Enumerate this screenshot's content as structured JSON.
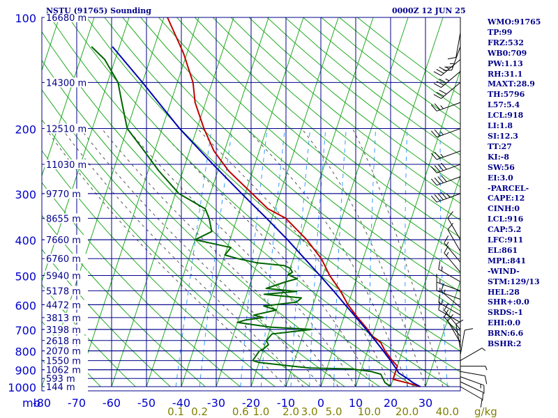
{
  "header": {
    "title": "NSTU (91765) Sounding",
    "datetime": "0000Z 12 JUN 25"
  },
  "colors": {
    "frame": "#00008b",
    "axis_text": "#0000cd",
    "mixing_text": "#808000",
    "dry_adiabat": "#22aa22",
    "temperature": "#c00000",
    "dewpoint": "#006400",
    "parcel": "#0000b4",
    "moist_adiabat": "#555555",
    "mixing_ratio": "#3399ff",
    "wind": "#000000",
    "stats": "#00008b"
  },
  "stats": [
    "WMO:91765",
    "TP:99",
    "FRZ:532",
    "WB0:709",
    "PW:1.13",
    "RH:31.1",
    "MAXT:28.9",
    "TH:5796",
    "L57:5.4",
    "LCL:918",
    "LI:1.8",
    "SI:12.3",
    "TT:27",
    "KI:-8",
    "SW:56",
    "EI:3.0",
    "-PARCEL-",
    "CAPE:12",
    "CINH:0",
    "LCL:916",
    "CAP:5.2",
    "LFC:911",
    "EL:861",
    "MPL:841",
    "-WIND-",
    "STM:129/13",
    "HEL:28",
    "SHR+:0.0",
    "SRDS:-1",
    "EHI:0.0",
    "BRN:6.6",
    "BSHR:2"
  ],
  "chart_data": {
    "type": "line",
    "title": "NSTU (91765) Sounding",
    "xlabel": "",
    "ylabel": "mb",
    "x_unit_label": "g/kg",
    "xlim": [
      -80,
      40
    ],
    "ylim": [
      1000,
      100
    ],
    "y_scale": "log",
    "temperature_ticks": [
      "-80",
      "-70",
      "-60",
      "-50",
      "-40",
      "-30",
      "-20",
      "-10",
      "0",
      "10",
      "20",
      "30"
    ],
    "pressure_ticks": [
      {
        "p": 100,
        "label": "100"
      },
      {
        "p": 200,
        "label": "200"
      },
      {
        "p": 300,
        "label": "300"
      },
      {
        "p": 400,
        "label": "400"
      },
      {
        "p": 500,
        "label": "500"
      },
      {
        "p": 600,
        "label": "600"
      },
      {
        "p": 700,
        "label": "700"
      },
      {
        "p": 800,
        "label": "800"
      },
      {
        "p": 900,
        "label": "900"
      },
      {
        "p": 1000,
        "label": "1000"
      }
    ],
    "height_labels": [
      {
        "p": 100,
        "label": "16680 m"
      },
      {
        "p": 150,
        "label": "14300 m"
      },
      {
        "p": 200,
        "label": "12510 m"
      },
      {
        "p": 250,
        "label": "11030 m"
      },
      {
        "p": 300,
        "label": "9770 m"
      },
      {
        "p": 350,
        "label": "8655 m"
      },
      {
        "p": 400,
        "label": "7660 m"
      },
      {
        "p": 450,
        "label": "6760 m"
      },
      {
        "p": 500,
        "label": "5940 m"
      },
      {
        "p": 550,
        "label": "5178 m"
      },
      {
        "p": 600,
        "label": "4472 m"
      },
      {
        "p": 650,
        "label": "3813 m"
      },
      {
        "p": 700,
        "label": "3198 m"
      },
      {
        "p": 750,
        "label": "2618 m"
      },
      {
        "p": 800,
        "label": "2070 m"
      },
      {
        "p": 850,
        "label": "1550 m"
      },
      {
        "p": 900,
        "label": "1062 m"
      },
      {
        "p": 950,
        "label": "593 m"
      },
      {
        "p": 1000,
        "label": "144 m"
      }
    ],
    "mixing_ratio_labels": [
      "0.1",
      "0.2",
      "0.6",
      "1.0",
      "2.0",
      "3.0",
      "5.0",
      "10.0",
      "20.0",
      "40.0"
    ],
    "mixing_ratio_values": [
      0.1,
      0.2,
      0.6,
      1.0,
      2.0,
      3.0,
      5.0,
      10.0,
      20.0,
      40.0
    ],
    "grid": true,
    "series": [
      {
        "key": "temperature",
        "points": [
          [
            1000,
            28.5
          ],
          [
            980,
            25
          ],
          [
            955,
            20
          ],
          [
            910,
            20
          ],
          [
            880,
            20
          ],
          [
            850,
            18
          ],
          [
            800,
            15
          ],
          [
            760,
            13
          ],
          [
            730,
            10
          ],
          [
            700,
            8
          ],
          [
            650,
            4
          ],
          [
            600,
            0
          ],
          [
            550,
            -3.5
          ],
          [
            500,
            -8
          ],
          [
            450,
            -12
          ],
          [
            400,
            -18
          ],
          [
            350,
            -26
          ],
          [
            330,
            -32
          ],
          [
            300,
            -38
          ],
          [
            260,
            -47
          ],
          [
            230,
            -53
          ],
          [
            200,
            -58
          ],
          [
            170,
            -63
          ],
          [
            150,
            -65.5
          ],
          [
            125,
            -71
          ],
          [
            100,
            -79
          ]
        ]
      },
      {
        "key": "dewpoint",
        "points": [
          [
            1000,
            20
          ],
          [
            975,
            18
          ],
          [
            950,
            17
          ],
          [
            925,
            16
          ],
          [
            910,
            13
          ],
          [
            895,
            7
          ],
          [
            890,
            -5
          ],
          [
            860,
            -20
          ],
          [
            850,
            -22
          ],
          [
            800,
            -21
          ],
          [
            790,
            -20
          ],
          [
            770,
            -19
          ],
          [
            750,
            -20
          ],
          [
            720,
            -19
          ],
          [
            700,
            -8
          ],
          [
            690,
            -20
          ],
          [
            680,
            -25
          ],
          [
            670,
            -30
          ],
          [
            660,
            -28
          ],
          [
            650,
            -23
          ],
          [
            640,
            -26
          ],
          [
            620,
            -20
          ],
          [
            605,
            -24
          ],
          [
            590,
            -15
          ],
          [
            575,
            -14
          ],
          [
            562,
            -25
          ],
          [
            552,
            -16
          ],
          [
            542,
            -25
          ],
          [
            520,
            -20
          ],
          [
            510,
            -17
          ],
          [
            498,
            -20
          ],
          [
            490,
            -19
          ],
          [
            478,
            -20
          ],
          [
            470,
            -22
          ],
          [
            462,
            -30
          ],
          [
            450,
            -36
          ],
          [
            440,
            -40
          ],
          [
            420,
            -39
          ],
          [
            400,
            -50
          ],
          [
            380,
            -46
          ],
          [
            350,
            -48
          ],
          [
            330,
            -50
          ],
          [
            300,
            -59
          ],
          [
            260,
            -67
          ],
          [
            230,
            -73
          ],
          [
            200,
            -80
          ],
          [
            170,
            -84
          ],
          [
            150,
            -87
          ],
          [
            130,
            -93
          ],
          [
            120,
            -98
          ]
        ]
      },
      {
        "key": "parcel",
        "points": [
          [
            1000,
            28.5
          ],
          [
            975,
            26
          ],
          [
            950,
            24
          ],
          [
            918,
            21
          ],
          [
            900,
            20.2
          ],
          [
            850,
            17.5
          ],
          [
            800,
            14.5
          ],
          [
            750,
            11.2
          ],
          [
            700,
            7.6
          ],
          [
            650,
            3.6
          ],
          [
            600,
            -0.8
          ],
          [
            550,
            -5.5
          ],
          [
            500,
            -10.8
          ],
          [
            450,
            -16.8
          ],
          [
            400,
            -23.5
          ],
          [
            350,
            -31.5
          ],
          [
            300,
            -41
          ],
          [
            250,
            -52
          ],
          [
            200,
            -65
          ],
          [
            150,
            -80
          ],
          [
            120,
            -92
          ]
        ]
      }
    ],
    "wind_barbs": [
      {
        "p": 1000,
        "dir": 120,
        "spd": 10
      },
      {
        "p": 970,
        "dir": 115,
        "spd": 12
      },
      {
        "p": 940,
        "dir": 110,
        "spd": 15
      },
      {
        "p": 910,
        "dir": 100,
        "spd": 10
      },
      {
        "p": 880,
        "dir": 90,
        "spd": 5
      },
      {
        "p": 850,
        "dir": 60,
        "spd": 5
      },
      {
        "p": 820,
        "dir": 10,
        "spd": 10
      },
      {
        "p": 790,
        "dir": 350,
        "spd": 10
      },
      {
        "p": 760,
        "dir": 330,
        "spd": 10
      },
      {
        "p": 730,
        "dir": 320,
        "spd": 10
      },
      {
        "p": 700,
        "dir": 320,
        "spd": 10
      },
      {
        "p": 670,
        "dir": 300,
        "spd": 10
      },
      {
        "p": 640,
        "dir": 300,
        "spd": 15
      },
      {
        "p": 610,
        "dir": 310,
        "spd": 15
      },
      {
        "p": 580,
        "dir": 290,
        "spd": 15
      },
      {
        "p": 550,
        "dir": 290,
        "spd": 15
      },
      {
        "p": 520,
        "dir": 300,
        "spd": 15
      },
      {
        "p": 490,
        "dir": 320,
        "spd": 15
      },
      {
        "p": 460,
        "dir": 320,
        "spd": 15
      },
      {
        "p": 430,
        "dir": 330,
        "spd": 10
      },
      {
        "p": 400,
        "dir": 330,
        "spd": 10
      },
      {
        "p": 300,
        "dir": 250,
        "spd": 45
      },
      {
        "p": 270,
        "dir": 250,
        "spd": 40
      },
      {
        "p": 250,
        "dir": 250,
        "spd": 40
      },
      {
        "p": 230,
        "dir": 250,
        "spd": 25
      },
      {
        "p": 200,
        "dir": 250,
        "spd": 25
      },
      {
        "p": 170,
        "dir": 250,
        "spd": 25
      },
      {
        "p": 150,
        "dir": 230,
        "spd": 30
      },
      {
        "p": 140,
        "dir": 230,
        "spd": 35
      },
      {
        "p": 130,
        "dir": 230,
        "spd": 35
      },
      {
        "p": 120,
        "dir": 200,
        "spd": 25
      },
      {
        "p": 110,
        "dir": 190,
        "spd": 10
      }
    ]
  }
}
